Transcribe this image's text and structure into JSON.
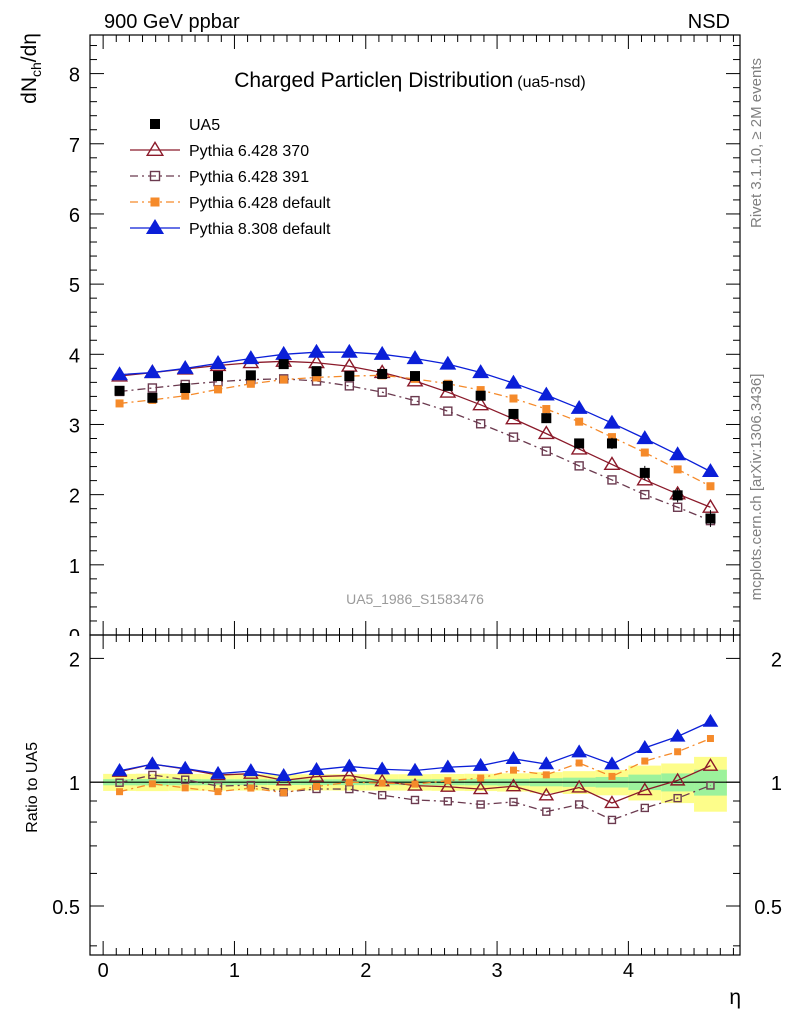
{
  "header": {
    "energy_label": "900 GeV ppbar",
    "process_label": "NSD"
  },
  "side_labels": {
    "rivet": "Rivet 3.1.10, ≥ 2M events",
    "mcplots": "mcplots.cern.ch [arXiv:1306.3436]"
  },
  "chart_data": {
    "type": "scatter",
    "title": "Charged Particleη Distribution",
    "title_tag": "(ua5-nsd)",
    "analysis_label": "UA5_1986_S1583476",
    "xlabel": "η",
    "ylabel_main": "dN_ch/dη",
    "ylabel_ratio": "Ratio to UA5",
    "xlim": [
      -0.1,
      4.85
    ],
    "ylim_main": [
      0,
      8.55
    ],
    "ylim_ratio": [
      0.38,
      2.28
    ],
    "x_ticks": [
      "0",
      "1",
      "2",
      "3",
      "4"
    ],
    "y_ticks_main": [
      "1",
      "2",
      "3",
      "4",
      "5",
      "6",
      "7",
      "8"
    ],
    "y_ticks_ratio": [
      "0.5",
      "1",
      "2"
    ],
    "x": [
      0.125,
      0.375,
      0.625,
      0.875,
      1.125,
      1.375,
      1.625,
      1.875,
      2.125,
      2.375,
      2.625,
      2.875,
      3.125,
      3.375,
      3.625,
      3.875,
      4.125,
      4.375,
      4.625
    ],
    "series": [
      {
        "name": "UA5",
        "color": "#000000",
        "marker": "square-filled",
        "line": "none",
        "values": [
          3.48,
          3.38,
          3.52,
          3.69,
          3.7,
          3.86,
          3.76,
          3.69,
          3.72,
          3.69,
          3.55,
          3.41,
          3.15,
          3.09,
          2.73,
          2.73,
          2.31,
          1.99,
          1.66
        ],
        "errors": [
          0.06,
          0.06,
          0.06,
          0.06,
          0.06,
          0.06,
          0.06,
          0.06,
          0.06,
          0.06,
          0.06,
          0.06,
          0.06,
          0.07,
          0.07,
          0.08,
          0.1,
          0.1,
          0.12
        ]
      },
      {
        "name": "Pythia 6.428 370",
        "color": "#8b1a2a",
        "marker": "triangle-open",
        "line": "solid",
        "values": [
          3.69,
          3.74,
          3.79,
          3.84,
          3.88,
          3.9,
          3.88,
          3.83,
          3.74,
          3.62,
          3.46,
          3.28,
          3.08,
          2.87,
          2.65,
          2.43,
          2.21,
          2.01,
          1.82
        ]
      },
      {
        "name": "Pythia 6.428 391",
        "color": "#6b3a4f",
        "marker": "square-open",
        "line": "dashdot",
        "values": [
          3.47,
          3.52,
          3.57,
          3.61,
          3.64,
          3.65,
          3.62,
          3.55,
          3.46,
          3.34,
          3.19,
          3.01,
          2.82,
          2.62,
          2.41,
          2.21,
          2.0,
          1.82,
          1.63
        ]
      },
      {
        "name": "Pythia 6.428 default",
        "color": "#f58a2a",
        "marker": "square-filled",
        "line": "dashdot",
        "values": [
          3.3,
          3.35,
          3.41,
          3.5,
          3.58,
          3.64,
          3.67,
          3.69,
          3.7,
          3.65,
          3.58,
          3.49,
          3.37,
          3.22,
          3.04,
          2.82,
          2.6,
          2.36,
          2.12
        ]
      },
      {
        "name": "Pythia 8.308 default",
        "color": "#0b1fd8",
        "marker": "triangle-filled",
        "line": "solid",
        "values": [
          3.71,
          3.74,
          3.8,
          3.87,
          3.94,
          4.0,
          4.03,
          4.03,
          4.0,
          3.94,
          3.86,
          3.74,
          3.59,
          3.42,
          3.23,
          3.02,
          2.8,
          2.57,
          2.33
        ]
      }
    ]
  }
}
